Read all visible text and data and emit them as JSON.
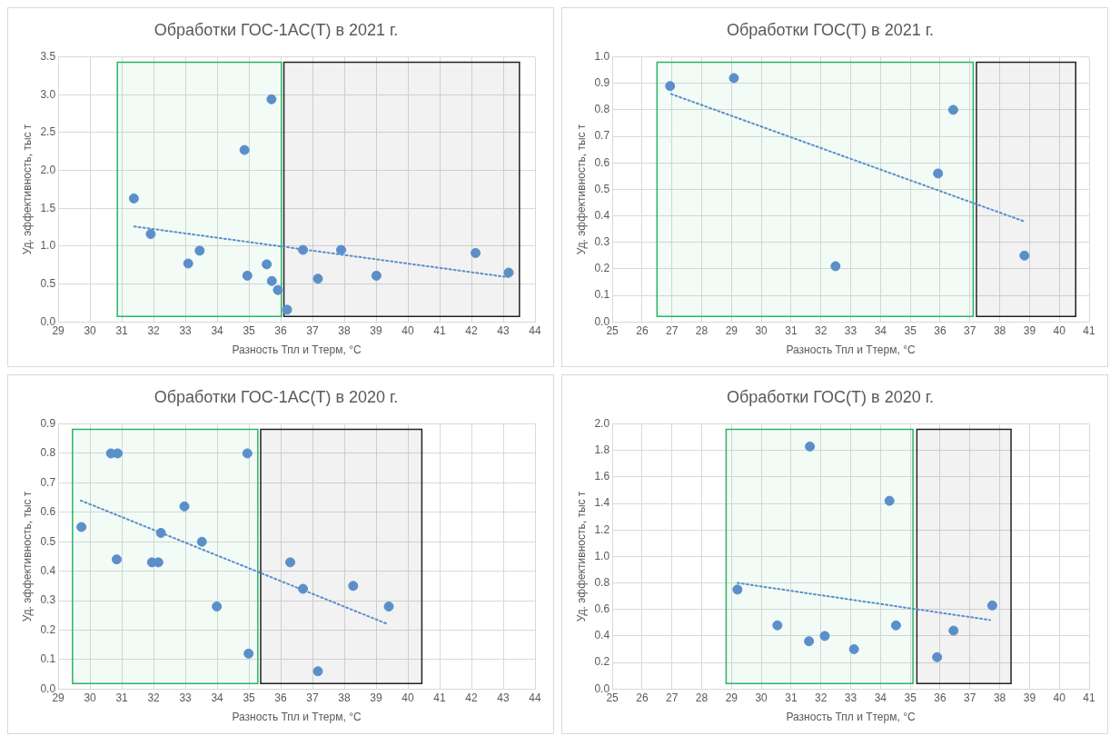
{
  "chart_data": [
    {
      "type": "scatter",
      "title": "Обработки ГОС-1АС(Т) в 2021 г.",
      "xlabel": "Разность Тпл и Ттерм, °С",
      "ylabel": "Уд. эффективность, тыс т",
      "xlim": [
        29,
        44
      ],
      "xticks": [
        29,
        30,
        31,
        32,
        33,
        34,
        35,
        36,
        37,
        38,
        39,
        40,
        41,
        42,
        43,
        44
      ],
      "ylim": [
        0,
        3.5
      ],
      "yticks": [
        {
          "value": 0,
          "label": "0.0"
        },
        0.5,
        {
          "value": 1,
          "label": "1.0"
        },
        1.5,
        {
          "value": 2,
          "label": "2.0"
        },
        2.5,
        {
          "value": 3,
          "label": "3.0"
        },
        3.5
      ],
      "grid": true,
      "legend": false,
      "series": [
        {
          "type": "scatter",
          "color": "#5b8fc9",
          "marker": "circle",
          "x": [
            31.38,
            31.91,
            33.09,
            33.45,
            34.86,
            34.95,
            35.56,
            35.71,
            35.72,
            35.91,
            36.2,
            36.7,
            37.17,
            37.9,
            39.01,
            42.13,
            43.17
          ],
          "values": [
            1.63,
            1.16,
            0.77,
            0.94,
            2.27,
            0.61,
            0.76,
            2.94,
            0.54,
            0.42,
            0.16,
            0.95,
            0.57,
            0.95,
            0.61,
            0.91,
            0.65
          ]
        },
        {
          "type": "line",
          "line_style": "dotted",
          "marker": "none",
          "color": "#5b8fc9",
          "x": [
            31.39,
            43.15
          ],
          "values": [
            1.26,
            0.59
          ]
        }
      ],
      "bands": [
        {
          "axis": "x",
          "from": 30.86,
          "to": 36.02,
          "color": "#2ab463"
        },
        {
          "axis": "x",
          "from": 36.1,
          "to": 43.51,
          "color": "#222222"
        }
      ]
    },
    {
      "type": "scatter",
      "title": "Обработки ГОС(Т) в 2021 г.",
      "xlabel": "Разность Тпл и Ттерм, °С",
      "ylabel": "Уд. эффективность, тыс т",
      "xlim": [
        25,
        41
      ],
      "xticks": [
        25,
        26,
        27,
        28,
        29,
        30,
        31,
        32,
        33,
        34,
        35,
        36,
        37,
        38,
        39,
        40,
        41
      ],
      "ylim": [
        0,
        1
      ],
      "yticks": [
        {
          "value": 0,
          "label": "0.0"
        },
        0.1,
        0.2,
        0.3,
        0.4,
        0.5,
        0.6,
        0.7,
        0.8,
        0.9,
        {
          "value": 1,
          "label": "1.0"
        }
      ],
      "grid": true,
      "legend": false,
      "series": [
        {
          "type": "scatter",
          "color": "#5b8fc9",
          "marker": "circle",
          "x": [
            26.94,
            29.08,
            32.49,
            35.93,
            36.44,
            38.83
          ],
          "values": [
            0.89,
            0.92,
            0.21,
            0.56,
            0.8,
            0.25
          ]
        },
        {
          "type": "line",
          "line_style": "dotted",
          "marker": "none",
          "color": "#5b8fc9",
          "x": [
            26.97,
            38.8
          ],
          "values": [
            0.86,
            0.38
          ]
        }
      ],
      "bands": [
        {
          "axis": "x",
          "from": 26.5,
          "to": 37.11,
          "color": "#2ab463"
        },
        {
          "axis": "x",
          "from": 37.22,
          "to": 40.55,
          "color": "#222222"
        }
      ]
    },
    {
      "type": "scatter",
      "title": "Обработки ГОС-1АС(Т) в 2020 г.",
      "xlabel": "Разность Тпл и Ттерм, °С",
      "ylabel": "Уд. эффективность, тыс т",
      "xlim": [
        29,
        44
      ],
      "xticks": [
        29,
        30,
        31,
        32,
        33,
        34,
        35,
        36,
        37,
        38,
        39,
        40,
        41,
        42,
        43,
        44
      ],
      "ylim": [
        0,
        0.9
      ],
      "yticks": [
        {
          "value": 0,
          "label": "0.0"
        },
        0.1,
        0.2,
        0.3,
        0.4,
        0.5,
        0.6,
        0.7,
        0.8,
        0.9
      ],
      "grid": true,
      "legend": false,
      "series": [
        {
          "type": "scatter",
          "color": "#5b8fc9",
          "marker": "circle",
          "x": [
            29.73,
            30.66,
            30.87,
            30.84,
            31.95,
            32.15,
            32.23,
            32.97,
            33.52,
            33.99,
            34.95,
            34.99,
            36.3,
            36.7,
            37.17,
            38.28,
            39.4
          ],
          "values": [
            0.55,
            0.8,
            0.8,
            0.44,
            0.43,
            0.43,
            0.53,
            0.62,
            0.5,
            0.28,
            0.8,
            0.12,
            0.43,
            0.34,
            0.06,
            0.35,
            0.28
          ]
        },
        {
          "type": "line",
          "line_style": "dotted",
          "marker": "none",
          "color": "#5b8fc9",
          "x": [
            29.71,
            39.37
          ],
          "values": [
            0.64,
            0.22
          ]
        }
      ],
      "bands": [
        {
          "axis": "x",
          "from": 29.45,
          "to": 35.28,
          "color": "#2ab463"
        },
        {
          "axis": "x",
          "from": 35.37,
          "to": 40.44,
          "color": "#222222"
        }
      ]
    },
    {
      "type": "scatter",
      "title": "Обработки ГОС(Т) в 2020 г.",
      "xlabel": "Разность Тпл и Ттерм, °С",
      "ylabel": "Уд. эффективность, тыс т",
      "xlim": [
        25,
        41
      ],
      "xticks": [
        25,
        26,
        27,
        28,
        29,
        30,
        31,
        32,
        33,
        34,
        35,
        36,
        37,
        38,
        39,
        40,
        41
      ],
      "ylim": [
        0,
        2
      ],
      "yticks": [
        {
          "value": 0,
          "label": "0.0"
        },
        0.2,
        0.4,
        0.6,
        0.8,
        {
          "value": 1,
          "label": "1.0"
        },
        1.2,
        1.4,
        1.6,
        1.8,
        {
          "value": 2,
          "label": "2.0"
        }
      ],
      "grid": true,
      "legend": false,
      "series": [
        {
          "type": "scatter",
          "color": "#5b8fc9",
          "marker": "circle",
          "x": [
            29.2,
            30.54,
            31.6,
            31.63,
            32.13,
            33.11,
            34.3,
            34.52,
            35.9,
            36.45,
            37.75
          ],
          "values": [
            0.75,
            0.48,
            0.36,
            1.83,
            0.4,
            0.3,
            1.42,
            0.48,
            0.24,
            0.44,
            0.63
          ]
        },
        {
          "type": "line",
          "line_style": "dotted",
          "marker": "none",
          "color": "#5b8fc9",
          "x": [
            29.2,
            37.68
          ],
          "values": [
            0.8,
            0.52
          ]
        }
      ],
      "bands": [
        {
          "axis": "x",
          "from": 28.82,
          "to": 35.09,
          "color": "#2ab463"
        },
        {
          "axis": "x",
          "from": 35.22,
          "to": 38.38,
          "color": "#222222"
        }
      ]
    }
  ]
}
